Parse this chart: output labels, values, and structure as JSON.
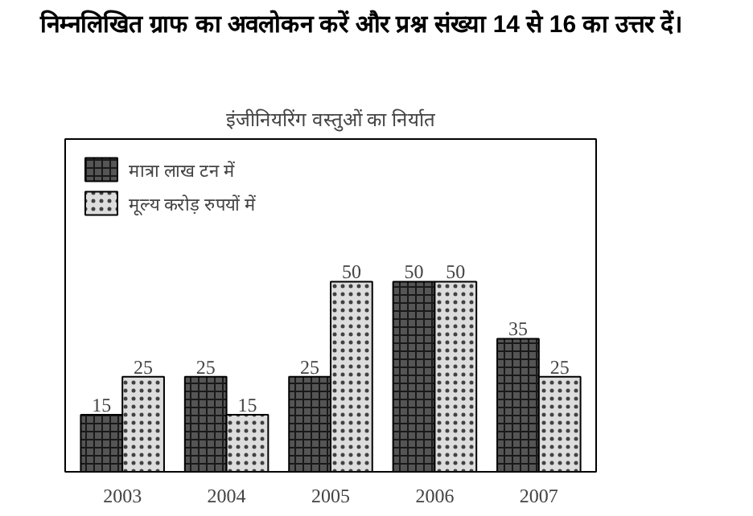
{
  "chart_data": {
    "type": "bar",
    "title": "निम्नलिखित ग्राफ का अवलोकन करें और प्रश्न संख्या 14 से 16 का उत्तर दें।",
    "subtitle": "इंजीनियरिंग वस्तुओं का निर्यात",
    "categories": [
      "2003",
      "2004",
      "2005",
      "2006",
      "2007"
    ],
    "series": [
      {
        "name": "मात्रा लाख टन में",
        "color": "#555555",
        "values": [
          15,
          25,
          25,
          50,
          35
        ]
      },
      {
        "name": "मूल्य करोड़ रुपयों में",
        "color": "#dddddd",
        "values": [
          25,
          15,
          50,
          50,
          25
        ]
      }
    ],
    "data_labels": true,
    "legend": "top left",
    "grid": false
  }
}
